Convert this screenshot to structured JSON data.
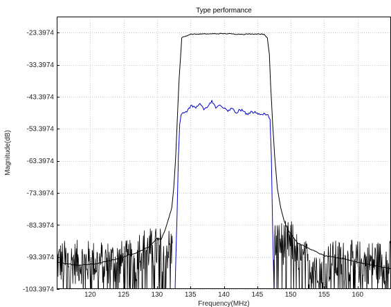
{
  "chart_data": {
    "type": "line",
    "title": "Type performance",
    "xlabel": "Frequency(MHz)",
    "ylabel": "Magnitude(dB)",
    "xlim": [
      115.0,
      165.0
    ],
    "ylim": [
      -103.3974,
      -18.3974
    ],
    "grid": true,
    "x_ticks": [
      120,
      125,
      130,
      135,
      140,
      145,
      150,
      155,
      160
    ],
    "x_tick_labels": [
      "120",
      "125",
      "130",
      "135",
      "140",
      "145",
      "150",
      "155",
      "160"
    ],
    "y_ticks": [
      -103.3974,
      -93.3974,
      -83.3974,
      -73.3974,
      -63.3974,
      -53.3974,
      -43.3974,
      -33.3974,
      -23.3974
    ],
    "y_tick_labels": [
      "-103.3974",
      "-93.3974",
      "-83.3974",
      "-73.3974",
      "-63.3974",
      "-53.3974",
      "-43.3974",
      "-33.3974",
      "-23.3974"
    ],
    "series": [
      {
        "color": "#000000",
        "x": [
          115.0,
          118.0,
          121.0,
          124.0,
          127.0,
          129.0,
          130.0,
          130.6,
          131.2,
          131.8,
          132.2,
          132.5,
          132.8,
          133.0,
          133.3,
          133.7,
          135.0,
          137.5,
          140.0,
          142.5,
          145.0,
          146.0,
          146.5,
          146.8,
          147.0,
          147.3,
          147.6,
          148.0,
          148.5,
          149.0,
          149.6,
          150.3,
          151.0,
          152.0,
          153.0,
          155.0,
          158.0,
          161.0,
          165.0
        ],
        "y": [
          -95.0,
          -96.0,
          -95.5,
          -94.0,
          -92.0,
          -90.0,
          -87.5,
          -88.0,
          -85.0,
          -81.0,
          -78.0,
          -72.0,
          -62.0,
          -52.0,
          -38.0,
          -25.0,
          -23.9,
          -23.8,
          -23.7,
          -23.9,
          -23.8,
          -23.9,
          -25.0,
          -30.0,
          -40.0,
          -52.0,
          -62.0,
          -72.0,
          -78.0,
          -82.0,
          -85.0,
          -87.0,
          -89.0,
          -90.0,
          -91.0,
          -93.0,
          -94.0,
          -95.5,
          -97.0
        ]
      },
      {
        "color": "#0000cc",
        "x": [
          132.7,
          133.0,
          133.2,
          133.4,
          133.6,
          134.0,
          134.6,
          135.2,
          135.8,
          136.4,
          137.0,
          137.6,
          138.2,
          138.8,
          139.4,
          140.0,
          140.6,
          141.2,
          141.8,
          142.4,
          143.0,
          143.6,
          144.2,
          144.8,
          145.4,
          146.0,
          146.6,
          146.9,
          147.1,
          147.3,
          147.5
        ],
        "y": [
          -103.4,
          -80.0,
          -62.0,
          -52.0,
          -49.0,
          -48.5,
          -47.5,
          -46.0,
          -47.0,
          -45.5,
          -47.5,
          -46.5,
          -44.5,
          -47.0,
          -46.0,
          -47.0,
          -48.0,
          -47.0,
          -48.5,
          -47.5,
          -48.0,
          -49.0,
          -48.0,
          -48.5,
          -49.0,
          -48.5,
          -49.0,
          -50.5,
          -62.0,
          -85.0,
          -103.4
        ]
      }
    ],
    "noise": {
      "bottom_db": -103.3974,
      "low_band_start": 115.0,
      "low_band_end": 132.3,
      "high_band_start": 147.4,
      "high_band_end": 165.0
    }
  }
}
